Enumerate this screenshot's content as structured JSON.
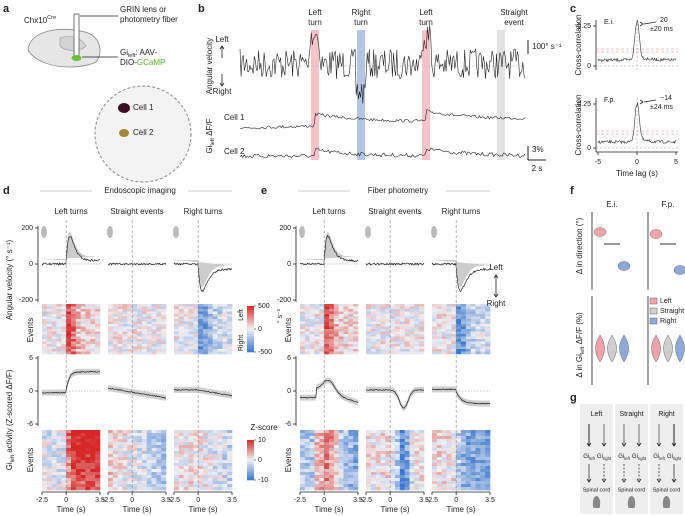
{
  "a": {
    "label": "a",
    "mouse": "Chx10",
    "mouse_sup": "Cre",
    "fiber": [
      "GRIN lens or",
      "photometry fiber"
    ],
    "virus_gi": "Gi",
    "virus_sub": "left",
    "virus_rest": ": AAV-",
    "virus_line2": "DIO-",
    "virus_gcamp": "GCaMP",
    "cells": [
      "Cell 1",
      "Cell 2"
    ]
  },
  "b": {
    "label": "b",
    "events": [
      [
        "Left",
        "turn"
      ],
      [
        "Right",
        "turn"
      ],
      [
        "Left",
        "turn"
      ],
      [
        "Straight",
        "event"
      ]
    ],
    "velocity_label": "Angular velocity",
    "left": "Left",
    "right": "Right",
    "velocity_scale": "100° s⁻¹",
    "cells": [
      "Cell 1",
      "Cell 2"
    ],
    "df_gi": "Gi",
    "df_sub": "left",
    "df_rest": " ΔF/F",
    "df_scale": "3%",
    "time_scale": "2 s"
  },
  "c": {
    "label": "c",
    "ylabel": "Cross-correlation",
    "xlabel": "Time lag (s)",
    "panels": [
      {
        "name": "E.i.",
        "lag": "20",
        "err": "±20 ms"
      },
      {
        "name": "F.p.",
        "lag": "−14",
        "err": "±24 ms"
      }
    ],
    "yticks": [
      0.25,
      0
    ],
    "xticks": [
      -5,
      0,
      5
    ]
  },
  "d": {
    "label": "d",
    "title": "Endoscopic imaging"
  },
  "e": {
    "label": "e",
    "title": "Fiber photometry",
    "left": "Left",
    "right": "Right"
  },
  "shared": {
    "conditions": [
      "Left turns",
      "Straight events",
      "Right turns"
    ],
    "velocity_label": "Angular velocity (° s⁻¹)",
    "velocity_ticks": [
      200,
      0,
      -200
    ],
    "events_label": "Events",
    "activity_gi": "Gi",
    "activity_sub": "left",
    "activity_rest": " activity (Z-scored ΔF/F)",
    "activity_ticks": [
      6,
      0,
      -6
    ],
    "time_ticks": [
      -2.5,
      0,
      3.5
    ],
    "time_label": "Time (s)",
    "vel_cbar_ticks": [
      500,
      0,
      -500
    ],
    "vel_cbar_left": "Left",
    "vel_cbar_right": "Right",
    "vel_cbar_unit": "° s⁻¹",
    "z_label": "Z-score",
    "z_ticks": [
      10,
      0,
      -10
    ]
  },
  "f": {
    "label": "f",
    "groups": [
      "E.i.",
      "F.p."
    ],
    "ylabel_top": "Δ in direction (°)",
    "ylabel_bottom_pre": "Δ in Gi",
    "ylabel_bottom_sub": "left",
    "ylabel_bottom_post": " ΔF/F (%)",
    "legend": [
      "Left",
      "Straight",
      "Right"
    ]
  },
  "g": {
    "label": "g",
    "columns": [
      "Left",
      "Straight",
      "Right"
    ],
    "gi": "Gi",
    "left": "left",
    "right": "right",
    "spinal": "Spinal cord"
  }
}
